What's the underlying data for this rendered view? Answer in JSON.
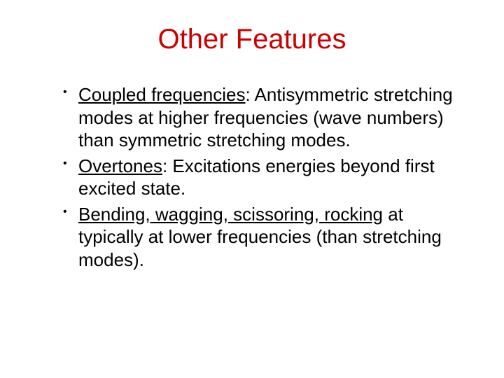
{
  "title": {
    "text": "Other Features",
    "color": "#cc0000"
  },
  "body_color": "#000000",
  "bullets": [
    {
      "lead": "Coupled frequencies",
      "rest": ": Antisymmetric stretching modes at higher frequencies (wave numbers) than symmetric stretching modes."
    },
    {
      "lead": "Overtones",
      "rest": ": Excitations energies beyond first excited state."
    },
    {
      "lead": "Bending, wagging, scissoring, rocking",
      "rest": " at typically at lower frequencies (than stretching modes)."
    }
  ]
}
